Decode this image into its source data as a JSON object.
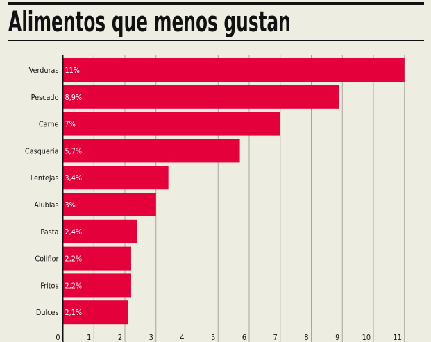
{
  "chart_data": {
    "type": "bar",
    "orientation": "horizontal",
    "title": "Alimentos que menos gustan",
    "categories": [
      "Verduras",
      "Pescado",
      "Carne",
      "Casquería",
      "Lentejas",
      "Alubias",
      "Pasta",
      "Coliflor",
      "Fritos",
      "Dulces"
    ],
    "values": [
      11,
      8.9,
      7,
      5.7,
      3.4,
      3,
      2.4,
      2.2,
      2.2,
      2.1
    ],
    "data_labels": [
      "11%",
      "8,9%",
      "7%",
      "5,7%",
      "3,4%",
      "3%",
      "2,4%",
      "2,2%",
      "2,2%",
      "2,1%"
    ],
    "xlim": [
      0,
      11
    ],
    "xticks": [
      "0",
      "1",
      "2",
      "3",
      "4",
      "5",
      "6",
      "7",
      "8",
      "9",
      "10",
      "11"
    ],
    "grid": true,
    "colors": {
      "bar": "#e4003b",
      "background": "#eeede2",
      "text": "#111111",
      "grid": "#a8a69c"
    }
  }
}
